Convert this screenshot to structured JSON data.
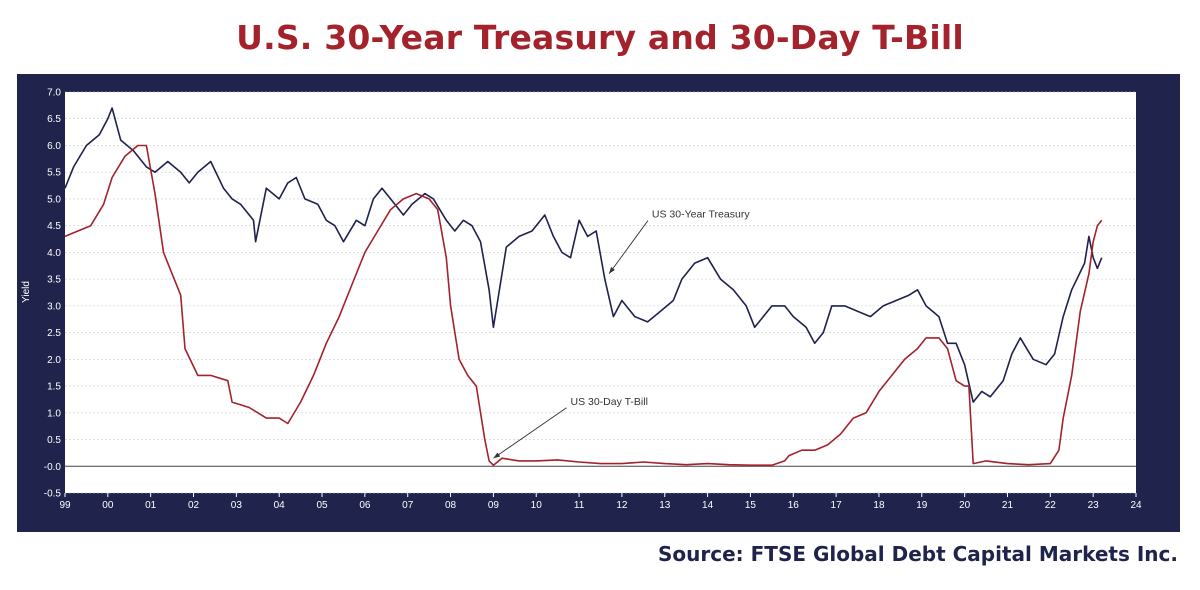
{
  "title": "U.S. 30-Year Treasury and 30-Day T-Bill",
  "source": "Source: FTSE Global Debt Capital Markets Inc.",
  "chart_data": {
    "type": "line",
    "title": "U.S. 30-Year Treasury and 30-Day T-Bill",
    "ylabel": "Yield",
    "xlabel": "",
    "ylim": [
      -0.5,
      7.0
    ],
    "xlim": [
      1999,
      2024
    ],
    "yticks": [
      "7.0",
      "6.5",
      "6.0",
      "5.5",
      "5.0",
      "4.5",
      "4.0",
      "3.5",
      "3.0",
      "2.5",
      "2.0",
      "1.5",
      "1.0",
      "0.5",
      "-0.0",
      "-0.5"
    ],
    "ytick_values": [
      7.0,
      6.5,
      6.0,
      5.5,
      5.0,
      4.5,
      4.0,
      3.5,
      3.0,
      2.5,
      2.0,
      1.5,
      1.0,
      0.5,
      0.0,
      -0.5
    ],
    "xticks": [
      "99",
      "00",
      "01",
      "02",
      "03",
      "04",
      "05",
      "06",
      "07",
      "08",
      "09",
      "10",
      "11",
      "12",
      "13",
      "14",
      "15",
      "16",
      "17",
      "18",
      "19",
      "20",
      "21",
      "22",
      "23",
      "24"
    ],
    "xtick_values": [
      1999,
      2000,
      2001,
      2002,
      2003,
      2004,
      2005,
      2006,
      2007,
      2008,
      2009,
      2010,
      2011,
      2012,
      2013,
      2014,
      2015,
      2016,
      2017,
      2018,
      2019,
      2020,
      2021,
      2022,
      2023,
      2024
    ],
    "grid": true,
    "annotations": [
      {
        "text": "US 30-Year Treasury",
        "series": 0,
        "arrow_to": [
          2011.7,
          3.6
        ]
      },
      {
        "text": "US 30-Day T-Bill",
        "series": 1,
        "arrow_to": [
          2009.0,
          0.15
        ]
      }
    ],
    "series": [
      {
        "name": "US 30-Year Treasury",
        "color": "#1f2150",
        "x": [
          1999.0,
          1999.2,
          1999.5,
          1999.8,
          2000.0,
          2000.1,
          2000.3,
          2000.6,
          2000.9,
          2001.1,
          2001.4,
          2001.7,
          2001.9,
          2002.1,
          2002.4,
          2002.7,
          2002.9,
          2003.1,
          2003.4,
          2003.45,
          2003.7,
          2004.0,
          2004.2,
          2004.4,
          2004.6,
          2004.9,
          2005.1,
          2005.3,
          2005.5,
          2005.8,
          2006.0,
          2006.2,
          2006.4,
          2006.6,
          2006.9,
          2007.1,
          2007.4,
          2007.6,
          2007.9,
          2008.1,
          2008.3,
          2008.5,
          2008.7,
          2008.9,
          2009.0,
          2009.1,
          2009.3,
          2009.6,
          2009.9,
          2010.2,
          2010.4,
          2010.6,
          2010.8,
          2011.0,
          2011.2,
          2011.4,
          2011.6,
          2011.8,
          2012.0,
          2012.3,
          2012.6,
          2012.9,
          2013.2,
          2013.4,
          2013.7,
          2014.0,
          2014.3,
          2014.6,
          2014.9,
          2015.1,
          2015.3,
          2015.5,
          2015.8,
          2016.0,
          2016.3,
          2016.5,
          2016.7,
          2016.9,
          2017.2,
          2017.5,
          2017.8,
          2018.1,
          2018.4,
          2018.7,
          2018.9,
          2019.1,
          2019.4,
          2019.6,
          2019.8,
          2020.0,
          2020.2,
          2020.4,
          2020.6,
          2020.9,
          2021.1,
          2021.3,
          2021.6,
          2021.9,
          2022.1,
          2022.3,
          2022.5,
          2022.8,
          2022.9,
          2023.0,
          2023.1,
          2023.2
        ],
        "y": [
          5.2,
          5.6,
          6.0,
          6.2,
          6.5,
          6.7,
          6.1,
          5.9,
          5.6,
          5.5,
          5.7,
          5.5,
          5.3,
          5.5,
          5.7,
          5.2,
          5.0,
          4.9,
          4.6,
          4.2,
          5.2,
          5.0,
          5.3,
          5.4,
          5.0,
          4.9,
          4.6,
          4.5,
          4.2,
          4.6,
          4.5,
          5.0,
          5.2,
          5.0,
          4.7,
          4.9,
          5.1,
          5.0,
          4.6,
          4.4,
          4.6,
          4.5,
          4.2,
          3.3,
          2.6,
          3.1,
          4.1,
          4.3,
          4.4,
          4.7,
          4.3,
          4.0,
          3.9,
          4.6,
          4.3,
          4.4,
          3.5,
          2.8,
          3.1,
          2.8,
          2.7,
          2.9,
          3.1,
          3.5,
          3.8,
          3.9,
          3.5,
          3.3,
          3.0,
          2.6,
          2.8,
          3.0,
          3.0,
          2.8,
          2.6,
          2.3,
          2.5,
          3.0,
          3.0,
          2.9,
          2.8,
          3.0,
          3.1,
          3.2,
          3.3,
          3.0,
          2.8,
          2.3,
          2.3,
          1.9,
          1.2,
          1.4,
          1.3,
          1.6,
          2.1,
          2.4,
          2.0,
          1.9,
          2.1,
          2.8,
          3.3,
          3.8,
          4.3,
          3.9,
          3.7,
          3.9
        ]
      },
      {
        "name": "US 30-Day T-Bill",
        "color": "#a3222b",
        "x": [
          1999.0,
          1999.3,
          1999.6,
          1999.9,
          2000.1,
          2000.4,
          2000.7,
          2000.9,
          2001.1,
          2001.3,
          2001.5,
          2001.7,
          2001.8,
          2002.1,
          2002.4,
          2002.8,
          2002.9,
          2003.3,
          2003.7,
          2004.0,
          2004.2,
          2004.5,
          2004.8,
          2005.1,
          2005.4,
          2005.7,
          2006.0,
          2006.3,
          2006.6,
          2006.9,
          2007.2,
          2007.5,
          2007.7,
          2007.9,
          2008.0,
          2008.2,
          2008.4,
          2008.6,
          2008.8,
          2008.9,
          2009.0,
          2009.2,
          2009.6,
          2010.0,
          2010.5,
          2011.0,
          2011.5,
          2012.0,
          2012.5,
          2013.0,
          2013.5,
          2014.0,
          2014.5,
          2015.0,
          2015.5,
          2015.8,
          2015.9,
          2016.2,
          2016.5,
          2016.8,
          2017.1,
          2017.4,
          2017.7,
          2018.0,
          2018.3,
          2018.6,
          2018.9,
          2019.1,
          2019.4,
          2019.6,
          2019.8,
          2020.0,
          2020.1,
          2020.2,
          2020.5,
          2021.0,
          2021.5,
          2022.0,
          2022.2,
          2022.3,
          2022.5,
          2022.7,
          2022.9,
          2023.0,
          2023.1,
          2023.2
        ],
        "y": [
          4.3,
          4.4,
          4.5,
          4.9,
          5.4,
          5.8,
          6.0,
          6.0,
          5.1,
          4.0,
          3.6,
          3.2,
          2.2,
          1.7,
          1.7,
          1.6,
          1.2,
          1.1,
          0.9,
          0.9,
          0.8,
          1.2,
          1.7,
          2.3,
          2.8,
          3.4,
          4.0,
          4.4,
          4.8,
          5.0,
          5.1,
          5.0,
          4.8,
          3.9,
          3.0,
          2.0,
          1.7,
          1.5,
          0.5,
          0.1,
          0.02,
          0.15,
          0.1,
          0.1,
          0.12,
          0.08,
          0.05,
          0.05,
          0.08,
          0.05,
          0.03,
          0.05,
          0.03,
          0.02,
          0.02,
          0.1,
          0.2,
          0.3,
          0.3,
          0.4,
          0.6,
          0.9,
          1.0,
          1.4,
          1.7,
          2.0,
          2.2,
          2.4,
          2.4,
          2.2,
          1.6,
          1.5,
          1.5,
          0.05,
          0.1,
          0.05,
          0.03,
          0.05,
          0.3,
          0.9,
          1.7,
          2.9,
          3.6,
          4.2,
          4.5,
          4.6
        ]
      }
    ]
  }
}
